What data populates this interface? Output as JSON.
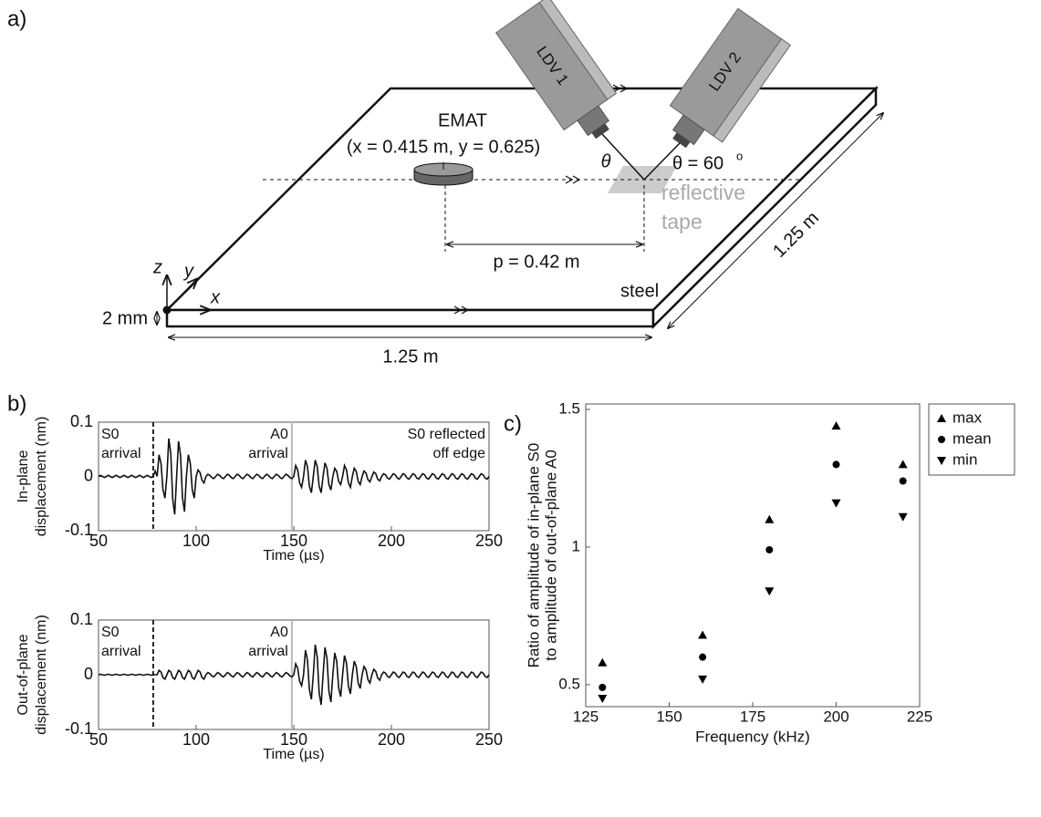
{
  "panel_labels": [
    "a)",
    "b)",
    "c)"
  ],
  "diagram": {
    "ldv1": "LDV 1",
    "ldv2": "LDV 2",
    "emat": "EMAT",
    "emat_pos": "(x = 0.415 m, y = 0.625)",
    "theta": "θ",
    "theta_eq": "θ = 60",
    "theta_sup": "o",
    "tape": [
      "reflective",
      "tape"
    ],
    "p": "p = 0.42 m",
    "steel": "steel",
    "thickness": "2 mm",
    "width": "1.25 m",
    "depth": "1.25 m",
    "axes": [
      "z",
      "y",
      "x"
    ]
  },
  "chart_data": [
    {
      "type": "line",
      "color": "#111",
      "ylabel": [
        "In-plane",
        "displacement (nm)"
      ],
      "xlabel": "Time (µs)",
      "xlim": [
        50,
        250
      ],
      "xticks": [
        50,
        100,
        150,
        200,
        250
      ],
      "ylim": [
        -0.1,
        0.1
      ],
      "yticks": [
        -0.1,
        0,
        0.1
      ],
      "vlines": [
        {
          "x": 78,
          "dashed": true,
          "color": "#222"
        },
        {
          "x": 149,
          "dashed": false,
          "color": "#bbb"
        }
      ],
      "annotations": [
        [
          "S0",
          "arrival"
        ],
        [
          "A0",
          "arrival"
        ],
        [
          "S0 reflected",
          "off edge"
        ]
      ],
      "x": [
        50,
        51,
        52,
        53,
        54,
        55,
        56,
        57,
        58,
        59,
        60,
        61,
        62,
        63,
        64,
        65,
        66,
        67,
        68,
        69,
        70,
        71,
        72,
        73,
        74,
        75,
        76,
        77,
        78,
        79,
        80,
        81,
        82,
        83,
        84,
        85,
        86,
        87,
        88,
        89,
        90,
        91,
        92,
        93,
        94,
        95,
        96,
        97,
        98,
        99,
        100,
        101,
        102,
        103,
        104,
        105,
        106,
        107,
        108,
        109,
        110,
        111,
        112,
        113,
        114,
        115,
        116,
        117,
        118,
        119,
        120,
        121,
        122,
        123,
        124,
        125,
        126,
        127,
        128,
        129,
        130,
        131,
        132,
        133,
        134,
        135,
        136,
        137,
        138,
        139,
        140,
        141,
        142,
        143,
        144,
        145,
        146,
        147,
        148,
        149,
        150,
        151,
        152,
        153,
        154,
        155,
        156,
        157,
        158,
        159,
        160,
        161,
        162,
        163,
        164,
        165,
        166,
        167,
        168,
        169,
        170,
        171,
        172,
        173,
        174,
        175,
        176,
        177,
        178,
        179,
        180,
        181,
        182,
        183,
        184,
        185,
        186,
        187,
        188,
        189,
        190,
        191,
        192,
        193,
        194,
        195,
        196,
        197,
        198,
        199,
        200,
        201,
        202,
        203,
        204,
        205,
        206,
        207,
        208,
        209,
        210,
        211,
        212,
        213,
        214,
        215,
        216,
        217,
        218,
        219,
        220,
        221,
        222,
        223,
        224,
        225,
        226,
        227,
        228,
        229,
        230,
        231,
        232,
        233,
        234,
        235,
        236,
        237,
        238,
        239,
        240,
        241,
        242,
        243,
        244,
        245,
        246,
        247,
        248,
        249,
        250
      ],
      "values": [
        0,
        0.002,
        0,
        -0.002,
        0,
        0.002,
        0,
        -0.002,
        0,
        0.002,
        0,
        -0.002,
        0,
        0.002,
        0,
        -0.002,
        0,
        0.002,
        0,
        -0.002,
        0,
        0.002,
        0,
        -0.002,
        0,
        0.002,
        0,
        -0.002,
        0,
        0.01,
        0,
        0.04,
        0.024,
        -0.024,
        -0.04,
        0,
        0.07,
        0.042,
        -0.042,
        -0.07,
        0,
        0.065,
        0.039,
        -0.039,
        -0.065,
        0,
        0.04,
        0.024,
        -0.024,
        -0.04,
        0,
        0.012,
        0.007,
        -0.007,
        -0.012,
        0,
        0.004,
        0.002,
        -0.002,
        -0.004,
        0,
        0.004,
        0.002,
        -0.002,
        -0.004,
        0,
        0.004,
        0.002,
        -0.002,
        -0.004,
        0,
        0.004,
        0.002,
        -0.002,
        -0.004,
        0,
        0.004,
        0.002,
        -0.002,
        -0.004,
        0,
        0.004,
        0.002,
        -0.002,
        -0.004,
        0,
        0.004,
        0.002,
        -0.002,
        -0.004,
        0,
        0.004,
        0.002,
        -0.002,
        -0.004,
        0,
        0.004,
        0.002,
        -0.002,
        -0.004,
        0,
        0.02,
        0.012,
        -0.012,
        -0.02,
        0,
        0.03,
        0.018,
        -0.018,
        -0.03,
        0,
        0.03,
        0.018,
        -0.018,
        -0.03,
        0,
        0.025,
        0.015,
        -0.015,
        -0.025,
        0,
        0.015,
        0.009,
        -0.009,
        -0.015,
        0,
        0.02,
        0.012,
        -0.012,
        -0.02,
        0,
        0.015,
        0.009,
        -0.009,
        -0.015,
        0,
        0.01,
        0.006,
        -0.006,
        -0.01,
        0,
        0.008,
        0.005,
        -0.005,
        -0.008,
        0,
        0.005,
        0.003,
        -0.003,
        -0.005,
        0,
        0.005,
        0.003,
        -0.003,
        -0.005,
        0,
        0.005,
        0.003,
        -0.003,
        -0.005,
        0,
        0.005,
        0.003,
        -0.003,
        -0.005,
        0,
        0.005,
        0.003,
        -0.003,
        -0.005,
        0,
        0.005,
        0.003,
        -0.003,
        -0.005,
        0,
        0.005,
        0.003,
        -0.003,
        -0.005,
        0,
        0.005,
        0.003,
        -0.003,
        -0.005,
        0,
        0.005,
        0.003,
        -0.003,
        -0.005,
        0,
        0.005,
        0.003,
        -0.003,
        -0.005,
        0,
        0.005,
        0.003,
        -0.003,
        -0.005,
        0
      ]
    },
    {
      "type": "line",
      "color": "#111",
      "ylabel": [
        "Out-of-plane",
        "displacement (nm)"
      ],
      "xlabel": "Time (µs)",
      "xlim": [
        50,
        250
      ],
      "xticks": [
        50,
        100,
        150,
        200,
        250
      ],
      "ylim": [
        -0.1,
        0.1
      ],
      "yticks": [
        -0.1,
        0,
        0.1
      ],
      "vlines": [
        {
          "x": 78,
          "dashed": true,
          "color": "#222"
        },
        {
          "x": 149,
          "dashed": false,
          "color": "#bbb"
        }
      ],
      "annotations": [
        [
          "S0",
          "arrival"
        ],
        [
          "A0",
          "arrival"
        ]
      ],
      "x": [
        50,
        51,
        52,
        53,
        54,
        55,
        56,
        57,
        58,
        59,
        60,
        61,
        62,
        63,
        64,
        65,
        66,
        67,
        68,
        69,
        70,
        71,
        72,
        73,
        74,
        75,
        76,
        77,
        78,
        79,
        80,
        81,
        82,
        83,
        84,
        85,
        86,
        87,
        88,
        89,
        90,
        91,
        92,
        93,
        94,
        95,
        96,
        97,
        98,
        99,
        100,
        101,
        102,
        103,
        104,
        105,
        106,
        107,
        108,
        109,
        110,
        111,
        112,
        113,
        114,
        115,
        116,
        117,
        118,
        119,
        120,
        121,
        122,
        123,
        124,
        125,
        126,
        127,
        128,
        129,
        130,
        131,
        132,
        133,
        134,
        135,
        136,
        137,
        138,
        139,
        140,
        141,
        142,
        143,
        144,
        145,
        146,
        147,
        148,
        149,
        150,
        151,
        152,
        153,
        154,
        155,
        156,
        157,
        158,
        159,
        160,
        161,
        162,
        163,
        164,
        165,
        166,
        167,
        168,
        169,
        170,
        171,
        172,
        173,
        174,
        175,
        176,
        177,
        178,
        179,
        180,
        181,
        182,
        183,
        184,
        185,
        186,
        187,
        188,
        189,
        190,
        191,
        192,
        193,
        194,
        195,
        196,
        197,
        198,
        199,
        200,
        201,
        202,
        203,
        204,
        205,
        206,
        207,
        208,
        209,
        210,
        211,
        212,
        213,
        214,
        215,
        216,
        217,
        218,
        219,
        220,
        221,
        222,
        223,
        224,
        225,
        226,
        227,
        228,
        229,
        230,
        231,
        232,
        233,
        234,
        235,
        236,
        237,
        238,
        239,
        240,
        241,
        242,
        243,
        244,
        245,
        246,
        247,
        248,
        249,
        250
      ],
      "values": [
        0,
        0.001,
        0,
        -0.001,
        0,
        0.001,
        0,
        -0.001,
        0,
        0.001,
        0,
        -0.001,
        0,
        0.001,
        0,
        -0.001,
        0,
        0.001,
        0,
        -0.001,
        0,
        0.001,
        0,
        -0.001,
        0,
        0.001,
        0,
        -0.001,
        0,
        0,
        0,
        0.008,
        0.005,
        -0.005,
        -0.008,
        0,
        0.008,
        0.005,
        -0.005,
        -0.008,
        0,
        0.008,
        0.005,
        -0.005,
        -0.008,
        0,
        0.008,
        0.005,
        -0.005,
        -0.008,
        0,
        0.008,
        0.005,
        -0.005,
        -0.008,
        0,
        0.004,
        0.002,
        -0.002,
        -0.004,
        0,
        0.004,
        0.002,
        -0.002,
        -0.004,
        0,
        0.004,
        0.002,
        -0.002,
        -0.004,
        0,
        0.004,
        0.002,
        -0.002,
        -0.004,
        0,
        0.004,
        0.002,
        -0.002,
        -0.004,
        0,
        0.004,
        0.002,
        -0.002,
        -0.004,
        0,
        0.004,
        0.002,
        -0.002,
        -0.004,
        0,
        0.004,
        0.002,
        -0.002,
        -0.004,
        0,
        0.004,
        0.002,
        -0.002,
        -0.004,
        0,
        0.02,
        0.012,
        -0.012,
        -0.02,
        0,
        0.045,
        0.027,
        -0.027,
        -0.045,
        0,
        0.055,
        0.033,
        -0.033,
        -0.055,
        0,
        0.05,
        0.03,
        -0.03,
        -0.05,
        0,
        0.04,
        0.024,
        -0.024,
        -0.04,
        0,
        0.035,
        0.021,
        -0.021,
        -0.035,
        0,
        0.025,
        0.015,
        -0.015,
        -0.025,
        0,
        0.015,
        0.009,
        -0.009,
        -0.015,
        0,
        0.01,
        0.006,
        -0.006,
        -0.01,
        0,
        0.005,
        0.003,
        -0.003,
        -0.005,
        0,
        0.005,
        0.003,
        -0.003,
        -0.005,
        0,
        0.005,
        0.003,
        -0.003,
        -0.005,
        0,
        0.005,
        0.003,
        -0.003,
        -0.005,
        0,
        0.005,
        0.003,
        -0.003,
        -0.005,
        0,
        0.005,
        0.003,
        -0.003,
        -0.005,
        0,
        0.005,
        0.003,
        -0.003,
        -0.005,
        0,
        0.005,
        0.003,
        -0.003,
        -0.005,
        0,
        0.005,
        0.003,
        -0.003,
        -0.005,
        0,
        0.005,
        0.003,
        -0.003,
        -0.005,
        0,
        0.005,
        0.003,
        -0.003,
        -0.005,
        0
      ]
    },
    {
      "type": "scatter",
      "ylabel": [
        "Ratio of amplitude of in-plane S0",
        "to amplitude of out-of-plane A0"
      ],
      "xlabel": "Frequency (kHz)",
      "xlim": [
        125,
        225
      ],
      "xticks": [
        125,
        150,
        175,
        200,
        225
      ],
      "ylim": [
        0.42,
        1.52
      ],
      "yticks": [
        0.5,
        1,
        1.5
      ],
      "legend": "outside-right",
      "x": [
        130,
        160,
        180,
        200,
        220
      ],
      "series": [
        {
          "name": "max",
          "marker": "triangle-up",
          "color": "#000",
          "values": [
            0.58,
            0.68,
            1.1,
            1.44,
            1.3
          ]
        },
        {
          "name": "mean",
          "marker": "circle",
          "color": "#000",
          "values": [
            0.49,
            0.6,
            0.99,
            1.3,
            1.24
          ]
        },
        {
          "name": "min",
          "marker": "triangle-down",
          "color": "#000",
          "values": [
            0.45,
            0.52,
            0.84,
            1.16,
            1.11
          ]
        }
      ]
    }
  ]
}
